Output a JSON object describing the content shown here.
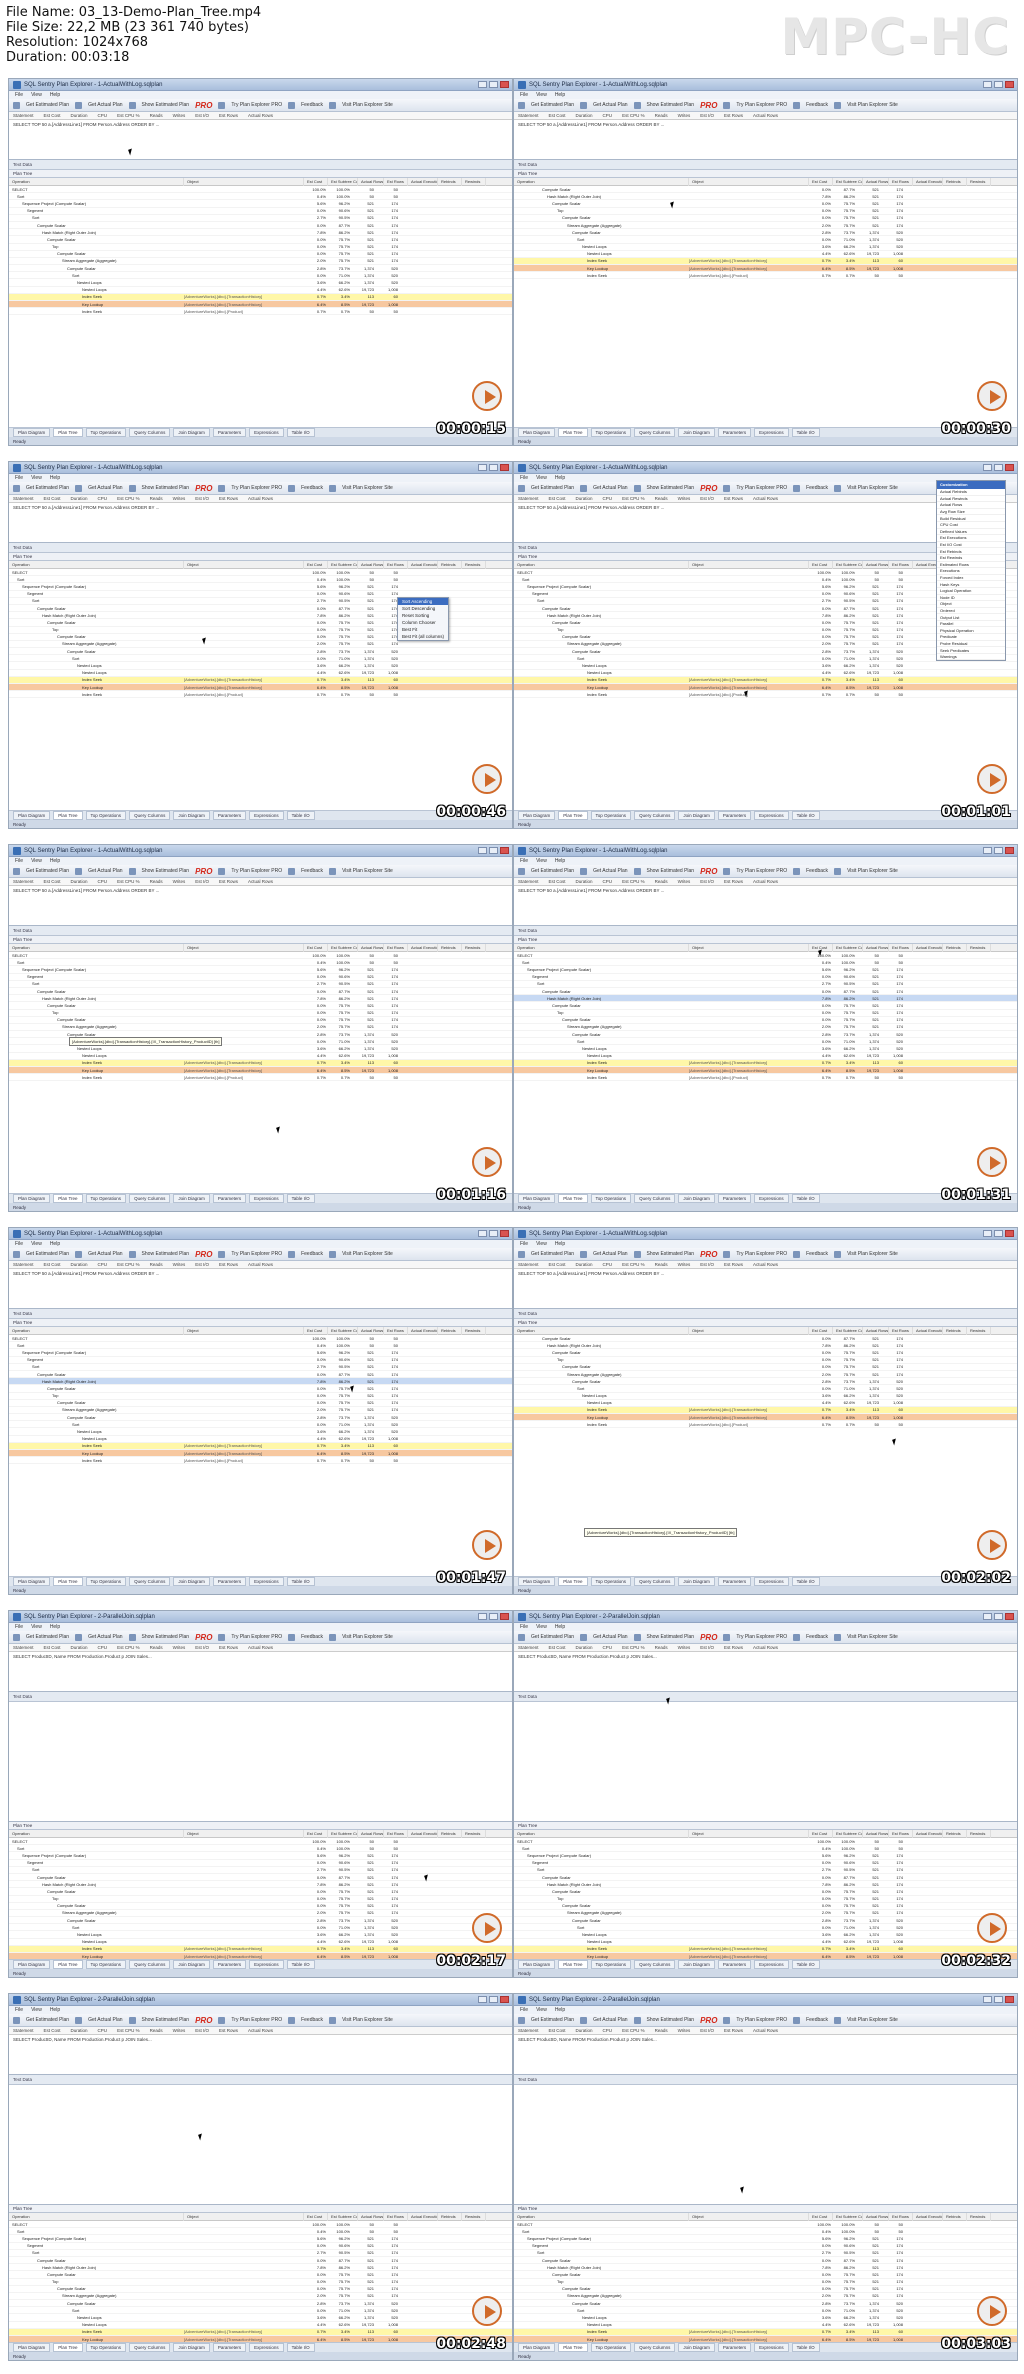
{
  "header": {
    "file_name": "File Name: 03_13-Demo-Plan_Tree.mp4",
    "file_size": "File Size: 22,2 MB (23 361 740 bytes)",
    "resolution": "Resolution: 1024x768",
    "duration": "Duration: 00:03:18",
    "brand": "MPC-HC"
  },
  "app": {
    "title": "SQL Sentry Plan Explorer - 1-ActualWithLog.sqlplan",
    "title2": "SQL Sentry Plan Explorer - 2-ParallelJoin.sqlplan",
    "menu": [
      "File",
      "View",
      "Help"
    ],
    "toolbar": [
      "Get Estimated Plan",
      "Get Actual Plan",
      "Show Estimated Plan",
      "PRO",
      "Try Plan Explorer PRO",
      "Feedback",
      "Visit Plan Explorer Site"
    ],
    "stmt_cols": [
      "Statement",
      "Est Cost",
      "Duration",
      "CPU",
      "Est CPU %",
      "Reads",
      "Writes",
      "Est I/O",
      "Est Rows",
      "Actual Rows"
    ],
    "stmt_text": "SELECT TOP 50 a.[AddressLine1] FROM Person.Address ORDER BY ...",
    "stmt_text2": "SELECT ProductID, Name FROM Production.Product p JOIN Sales...",
    "text_data": "Text Data",
    "plan_tree": "Plan Tree",
    "grid_cols": [
      "Operation",
      "Object",
      "Est Cost",
      "Est Subtree Cost",
      "Actual Rows",
      "Est Rows",
      "Actual Executions",
      "Rebinds",
      "Rewinds"
    ],
    "tabs": [
      "Plan Diagram",
      "Plan Tree",
      "Top Operations",
      "Query Columns",
      "Join Diagram",
      "Parameters",
      "Expressions",
      "Table I/O"
    ],
    "status": "Ready"
  },
  "rows": [
    {
      "op": "SELECT",
      "obj": "",
      "v": [
        "100.0%",
        "100.0%",
        "50",
        "50"
      ]
    },
    {
      "op": "Sort",
      "obj": "",
      "v": [
        "0.4%",
        "100.0%",
        "50",
        "50"
      ]
    },
    {
      "op": "Sequence Project (Compute Scalar)",
      "obj": "",
      "v": [
        "5.6%",
        "96.2%",
        "521",
        "174"
      ]
    },
    {
      "op": "Segment",
      "obj": "",
      "v": [
        "0.0%",
        "90.6%",
        "521",
        "174"
      ]
    },
    {
      "op": "Sort",
      "obj": "",
      "v": [
        "2.7%",
        "90.5%",
        "521",
        "174"
      ]
    },
    {
      "op": "Compute Scalar",
      "obj": "",
      "v": [
        "0.0%",
        "87.7%",
        "521",
        "174"
      ]
    },
    {
      "op": "Hash Match (Right Outer Join)",
      "obj": "",
      "v": [
        "7.8%",
        "86.2%",
        "521",
        "174"
      ]
    },
    {
      "op": "Compute Scalar",
      "obj": "",
      "v": [
        "0.0%",
        "75.7%",
        "521",
        "174"
      ]
    },
    {
      "op": "Top",
      "obj": "",
      "v": [
        "0.0%",
        "75.7%",
        "521",
        "174"
      ]
    },
    {
      "op": "Compute Scalar",
      "obj": "",
      "v": [
        "0.0%",
        "75.7%",
        "521",
        "174"
      ]
    },
    {
      "op": "Stream Aggregate (Aggregate)",
      "obj": "",
      "v": [
        "2.0%",
        "75.7%",
        "521",
        "174"
      ]
    },
    {
      "op": "Compute Scalar",
      "obj": "",
      "v": [
        "2.8%",
        "73.7%",
        "1,374",
        "520"
      ]
    },
    {
      "op": "Sort",
      "obj": "",
      "v": [
        "0.0%",
        "71.0%",
        "1,374",
        "520"
      ]
    },
    {
      "op": "Nested Loops",
      "obj": "",
      "v": [
        "3.6%",
        "66.2%",
        "1,374",
        "520"
      ]
    },
    {
      "op": "Nested Loops",
      "obj": "",
      "v": [
        "4.4%",
        "62.6%",
        "19,723",
        "1,008"
      ]
    },
    {
      "op": "Index Seek",
      "obj": "[AdventureWorks].[dbo].[TransactionHistory]",
      "v": [
        "0.7%",
        "3.4%",
        "113",
        "60"
      ],
      "hl": "yellow"
    },
    {
      "op": "Key Lookup",
      "obj": "[AdventureWorks].[dbo].[TransactionHistory]",
      "v": [
        "6.4%",
        "8.5%",
        "19,723",
        "1,008"
      ],
      "hl": "orange"
    },
    {
      "op": "Index Seek",
      "obj": "[AdventureWorks].[dbo].[Product]",
      "v": [
        "0.7%",
        "0.7%",
        "50",
        "50"
      ]
    }
  ],
  "thumbs": [
    {
      "time": "00:00:15"
    },
    {
      "time": "00:00:30"
    },
    {
      "time": "00:00:46"
    },
    {
      "time": "00:01:01"
    },
    {
      "time": "00:01:16"
    },
    {
      "time": "00:01:31"
    },
    {
      "time": "00:01:47"
    },
    {
      "time": "00:02:02"
    },
    {
      "time": "00:02:17"
    },
    {
      "time": "00:02:32"
    },
    {
      "time": "00:02:48"
    },
    {
      "time": "00:03:03"
    }
  ],
  "context_menu": [
    "Sort Ascending",
    "Sort Descending",
    "Reset Sorting",
    "Column Chooser",
    "Best Fit",
    "Best Fit (all columns)"
  ],
  "column_chooser": {
    "title": "Customization",
    "items": [
      "Actual Rebinds",
      "Actual Rewinds",
      "Actual Rows",
      "Avg Row Size",
      "Build Residual",
      "CPU Cost",
      "Defined Values",
      "Est Executions",
      "Est I/O Cost",
      "Est Rebinds",
      "Est Rewinds",
      "Estimated Rows",
      "Executions",
      "Forced Index",
      "Hash Keys",
      "Logical Operation",
      "Node ID",
      "Object",
      "Ordered",
      "Output List",
      "Parallel",
      "Physical Operation",
      "Predicate",
      "Probe Residual",
      "Seek Predicates",
      "Warnings"
    ]
  },
  "tooltip": "[AdventureWorks].[dbo].[TransactionHistory].[IX_TransactionHistory_ProductID] [th]"
}
